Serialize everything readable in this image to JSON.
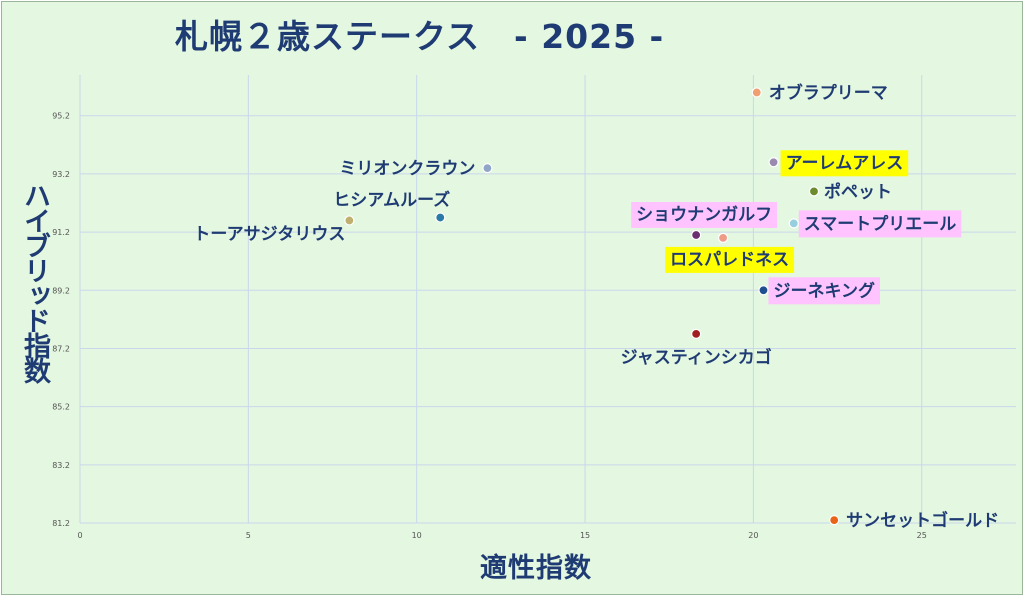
{
  "chart_data": {
    "type": "scatter",
    "title": "札幌２歳ステークス　- 2025 -",
    "xlabel": "適性指数",
    "ylabel": "ハイブリッド指数",
    "xlim": [
      0,
      27.8
    ],
    "ylim": [
      81.2,
      96.6
    ],
    "xticks": [
      "0",
      "5",
      "10",
      "15",
      "20",
      "25"
    ],
    "yticks": [
      "81.2",
      "83.2",
      "85.2",
      "87.2",
      "89.2",
      "91.2",
      "93.2",
      "95.2"
    ],
    "grid": true,
    "points": [
      {
        "name": "オブラプリーマ",
        "x": 20.1,
        "y": 96.0,
        "color": "#f0a070",
        "label_bg": ""
      },
      {
        "name": "アーレムアレス",
        "x": 20.6,
        "y": 93.6,
        "color": "#9a8ab0",
        "label_bg": "#ffff00"
      },
      {
        "name": "ミリオンクラウン",
        "x": 12.1,
        "y": 93.4,
        "color": "#8fa6c8",
        "label_bg": ""
      },
      {
        "name": "ポペット",
        "x": 21.8,
        "y": 92.6,
        "color": "#6e8a2e",
        "label_bg": ""
      },
      {
        "name": "ヒシアムルーズ",
        "x": 10.7,
        "y": 91.7,
        "color": "#2a7aa8",
        "label_bg": ""
      },
      {
        "name": "トーアサジタリウス",
        "x": 8.0,
        "y": 91.6,
        "color": "#c0b070",
        "label_bg": ""
      },
      {
        "name": "スマートプリエール",
        "x": 21.2,
        "y": 91.5,
        "color": "#98cede",
        "label_bg": "#ffc4ff"
      },
      {
        "name": "ショウナンガルフ",
        "x": 18.3,
        "y": 91.1,
        "color": "#6b3070",
        "label_bg": "#ffc4ff"
      },
      {
        "name": "ロスパレドネス",
        "x": 19.1,
        "y": 91.0,
        "color": "#f09a88",
        "label_bg": "#ffff00"
      },
      {
        "name": "ジーネキング",
        "x": 20.3,
        "y": 89.2,
        "color": "#1f4f8f",
        "label_bg": "#ffc4ff"
      },
      {
        "name": "ジャスティンシカゴ",
        "x": 18.3,
        "y": 87.7,
        "color": "#a02020",
        "label_bg": ""
      },
      {
        "name": "サンセットゴールド",
        "x": 22.4,
        "y": 81.3,
        "color": "#e86418",
        "label_bg": ""
      }
    ]
  }
}
